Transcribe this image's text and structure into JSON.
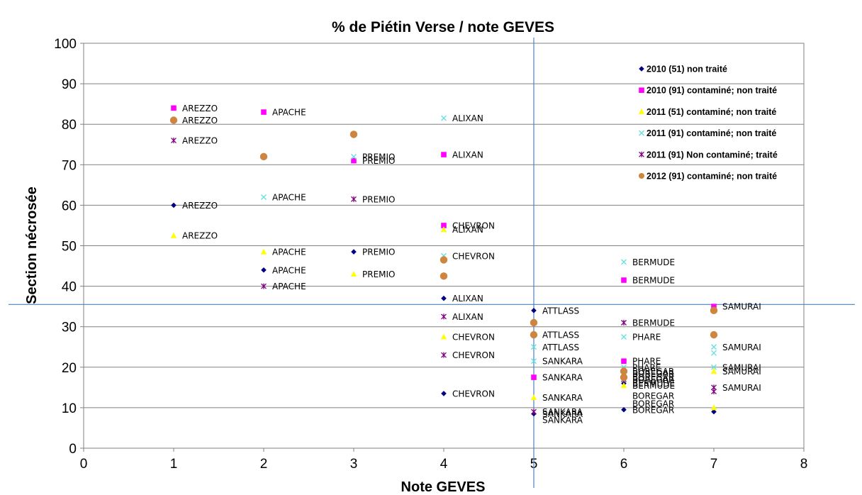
{
  "chart_data": {
    "type": "scatter",
    "title": "% de Piétin Verse / note GEVES",
    "xlabel": "Note GEVES",
    "ylabel": "Section nécrosée",
    "xlim": [
      0,
      8
    ],
    "ylim": [
      0,
      100
    ],
    "x_ticks": [
      "0",
      "1",
      "2",
      "3",
      "4",
      "5",
      "6",
      "7",
      "8"
    ],
    "y_ticks": [
      "0",
      "10",
      "20",
      "30",
      "40",
      "50",
      "60",
      "70",
      "80",
      "90",
      "100"
    ],
    "grid": "horizontal",
    "legend_position": "top-right",
    "reference_lines": {
      "x": 5,
      "y": 35.5
    },
    "series": [
      {
        "name": "2010 (51) non traité",
        "marker": "diamond",
        "color": "#000080",
        "points": [
          {
            "x": 1,
            "y": 60,
            "label": "AREZZO"
          },
          {
            "x": 2,
            "y": 44,
            "label": "APACHE"
          },
          {
            "x": 3,
            "y": 48.5,
            "label": "PREMIO"
          },
          {
            "x": 4,
            "y": 37,
            "label": "ALIXAN"
          },
          {
            "x": 4,
            "y": 13.5,
            "label": "CHEVRON"
          },
          {
            "x": 5,
            "y": 34,
            "label": "ATTLASS"
          },
          {
            "x": 5,
            "y": 8.5,
            "label": "SANKARA"
          },
          {
            "x": 6,
            "y": 16,
            "label": "BERMUDE"
          },
          {
            "x": 6,
            "y": 9.5,
            "label": "BOREGAR"
          },
          {
            "x": 7,
            "y": 9,
            "label": ""
          }
        ]
      },
      {
        "name": "2010 (91) contaminé; non traité",
        "marker": "square",
        "color": "#FF00FF",
        "points": [
          {
            "x": 1,
            "y": 84,
            "label": "AREZZO"
          },
          {
            "x": 2,
            "y": 83,
            "label": "APACHE"
          },
          {
            "x": 3,
            "y": 71,
            "label": "PREMIO"
          },
          {
            "x": 4,
            "y": 72.5,
            "label": "ALIXAN"
          },
          {
            "x": 4,
            "y": 55,
            "label": "CHEVRON"
          },
          {
            "x": 5,
            "y": 17.5,
            "label": "SANKARA"
          },
          {
            "x": 6,
            "y": 41.5,
            "label": "BERMUDE"
          },
          {
            "x": 6,
            "y": 21.5,
            "label": "PHARE"
          },
          {
            "x": 7,
            "y": 35,
            "label": "SAMURAI"
          }
        ]
      },
      {
        "name": "2011 (51) contaminé; non traité",
        "marker": "triangle",
        "color": "#FFFF00",
        "points": [
          {
            "x": 1,
            "y": 52.5,
            "label": "AREZZO"
          },
          {
            "x": 2,
            "y": 48.5,
            "label": "APACHE"
          },
          {
            "x": 3,
            "y": 43,
            "label": "PREMIO"
          },
          {
            "x": 4,
            "y": 54,
            "label": "ALIXAN"
          },
          {
            "x": 4,
            "y": 27.5,
            "label": "CHEVRON"
          },
          {
            "x": 5,
            "y": 12.5,
            "label": "SANKARA"
          },
          {
            "x": 6,
            "y": 15.5,
            "label": "BERMUDE"
          },
          {
            "x": 7,
            "y": 19,
            "label": "SAMURAI"
          },
          {
            "x": 7,
            "y": 10,
            "label": ""
          }
        ]
      },
      {
        "name": "2011 (91) contaminé; non traité",
        "marker": "x",
        "color": "#66E0E0",
        "points": [
          {
            "x": 2,
            "y": 62,
            "label": "APACHE"
          },
          {
            "x": 3,
            "y": 72,
            "label": "PREMIO"
          },
          {
            "x": 4,
            "y": 81.5,
            "label": "ALIXAN"
          },
          {
            "x": 4,
            "y": 47.5,
            "label": "CHEVRON"
          },
          {
            "x": 5,
            "y": 25,
            "label": "ATTLASS"
          },
          {
            "x": 5,
            "y": 21.5,
            "label": "SANKARA"
          },
          {
            "x": 6,
            "y": 46,
            "label": "BERMUDE"
          },
          {
            "x": 6,
            "y": 27.5,
            "label": "PHARE"
          },
          {
            "x": 6,
            "y": 20,
            "label": "PHARE"
          },
          {
            "x": 7,
            "y": 25,
            "label": "SAMURAI"
          },
          {
            "x": 7,
            "y": 23.5,
            "label": ""
          },
          {
            "x": 7,
            "y": 20,
            "label": "SAMURAI"
          }
        ]
      },
      {
        "name": "2011 (91) Non contaminé; traité",
        "marker": "star",
        "color": "#800080",
        "points": [
          {
            "x": 1,
            "y": 76,
            "label": "AREZZO"
          },
          {
            "x": 2,
            "y": 40,
            "label": "APACHE"
          },
          {
            "x": 3,
            "y": 61.5,
            "label": "PREMIO"
          },
          {
            "x": 4,
            "y": 32.5,
            "label": "ALIXAN"
          },
          {
            "x": 4,
            "y": 23,
            "label": "CHEVRON"
          },
          {
            "x": 5,
            "y": 9,
            "label": "SANKARA"
          },
          {
            "x": 6,
            "y": 31,
            "label": "BERMUDE"
          },
          {
            "x": 6,
            "y": 17,
            "label": "BOREGAR"
          },
          {
            "x": 7,
            "y": 15,
            "label": "SAMURAI"
          },
          {
            "x": 7,
            "y": 14,
            "label": ""
          }
        ]
      },
      {
        "name": "2012 (91) contaminé; non traité",
        "marker": "circle",
        "color": "#CD853F",
        "points": [
          {
            "x": 1,
            "y": 81,
            "label": "AREZZO"
          },
          {
            "x": 2,
            "y": 72,
            "label": ""
          },
          {
            "x": 3,
            "y": 77.5,
            "label": ""
          },
          {
            "x": 4,
            "y": 46.5,
            "label": ""
          },
          {
            "x": 4,
            "y": 42.5,
            "label": ""
          },
          {
            "x": 5,
            "y": 31,
            "label": ""
          },
          {
            "x": 5,
            "y": 28,
            "label": "ATTLASS"
          },
          {
            "x": 6,
            "y": 19,
            "label": "BOREGAR"
          },
          {
            "x": 6,
            "y": 17.5,
            "label": "BOREGAR"
          },
          {
            "x": 7,
            "y": 34,
            "label": ""
          },
          {
            "x": 7,
            "y": 28,
            "label": ""
          }
        ]
      }
    ],
    "extra_labels": [
      {
        "x": 5,
        "y": 7,
        "text": "SANKARA"
      },
      {
        "x": 6,
        "y": 18.5,
        "text": "BOREGAR"
      },
      {
        "x": 6,
        "y": 13,
        "text": "BOREGAR"
      },
      {
        "x": 6,
        "y": 11,
        "text": "BOREGAR"
      }
    ]
  }
}
